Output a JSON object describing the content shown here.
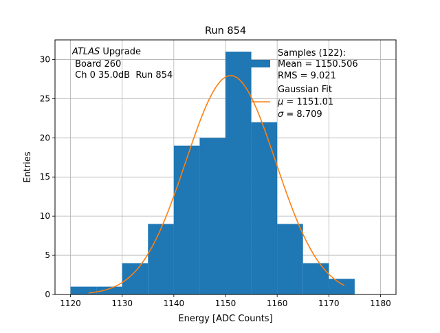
{
  "chart_data": {
    "type": "bar",
    "title": "Run 854",
    "xlabel": "Energy [ADC Counts]",
    "ylabel": "Entries",
    "xlim": [
      1117,
      1183
    ],
    "ylim": [
      0,
      32.5
    ],
    "grid": true,
    "x_ticks": [
      1120,
      1130,
      1140,
      1150,
      1160,
      1170,
      1180
    ],
    "y_ticks": [
      0,
      5,
      10,
      15,
      20,
      25,
      30
    ],
    "bin_edges": [
      1120,
      1125,
      1130,
      1135,
      1140,
      1145,
      1150,
      1155,
      1160,
      1165,
      1170,
      1175
    ],
    "series": [
      {
        "kind": "histogram",
        "color": "#1f77b4",
        "values": [
          1,
          1,
          4,
          9,
          19,
          20,
          31,
          22,
          9,
          4,
          2
        ]
      },
      {
        "kind": "gaussian-fit",
        "color": "#ff7f0e",
        "mu": 1151.01,
        "sigma": 8.709,
        "x_range": [
          1123.5,
          1173
        ]
      }
    ],
    "annotation": {
      "atlas": "ATLAS",
      "upgrade": " Upgrade",
      "board": " Board 260",
      "channel": " Ch 0 35.0dB  Run 854"
    },
    "legend": {
      "placement": "top-right",
      "samples_title": "Samples (122):",
      "samples_mean": "Mean = 1150.506",
      "samples_rms": "RMS = 9.021",
      "fit_title": "Gaussian Fit",
      "fit_mu_symbol": "μ",
      "fit_mu_value": " = 1151.01",
      "fit_sigma_symbol": "σ",
      "fit_sigma_value": " = 8.709"
    }
  }
}
